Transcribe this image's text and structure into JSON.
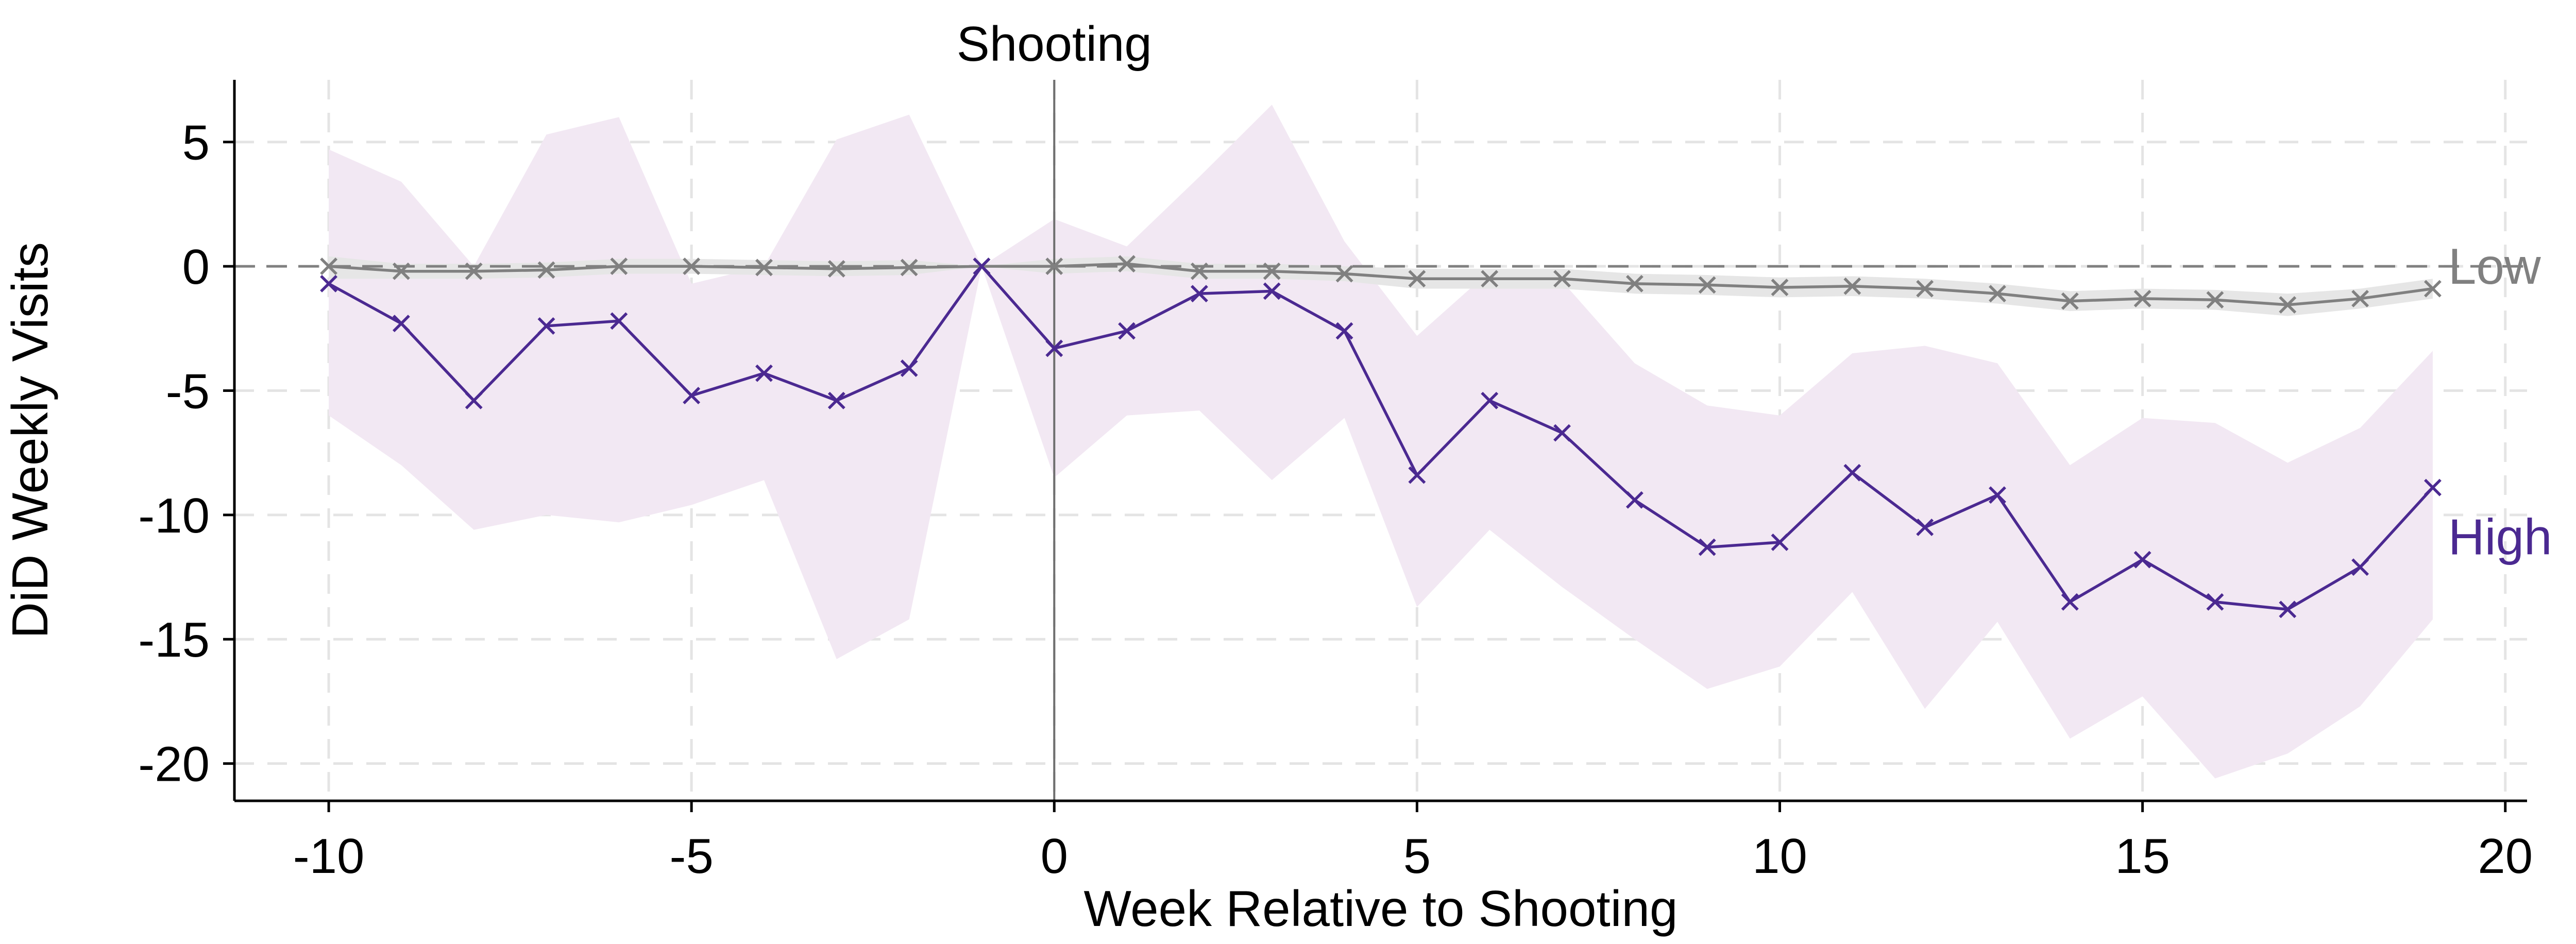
{
  "chart_data": {
    "type": "line",
    "title": "",
    "xlabel": "Week Relative to Shooting",
    "ylabel": "DiD Weekly Visits",
    "xlim": [
      -11.3,
      20.3
    ],
    "ylim": [
      -21.5,
      7.5
    ],
    "xticks": [
      -10,
      -5,
      0,
      5,
      10,
      15,
      20
    ],
    "xtick_labels": [
      "-10",
      "-5",
      "0",
      "5",
      "10",
      "15",
      "20"
    ],
    "yticks": [
      5,
      0,
      -5,
      -10,
      -15,
      -20
    ],
    "ytick_labels": [
      "5",
      "0",
      "-5",
      "-10",
      "-15",
      "-20"
    ],
    "grid": true,
    "reference_lines": {
      "horizontal_dashed_y": 0,
      "vertical_solid_x": 0
    },
    "annotations": [
      {
        "text": "Shooting",
        "x": 0,
        "position": "above-plot"
      }
    ],
    "x": [
      -10,
      -9,
      -8,
      -7,
      -6,
      -5,
      -4,
      -3,
      -2,
      -1,
      0,
      1,
      2,
      3,
      4,
      5,
      6,
      7,
      8,
      9,
      10,
      11,
      12,
      13,
      14,
      15,
      16,
      17,
      18,
      19
    ],
    "series": [
      {
        "name": "Low",
        "color": "#808080",
        "band_color": "#e6e6e6",
        "marker": "x",
        "values": [
          0.0,
          -0.2,
          -0.2,
          -0.15,
          0.0,
          0.0,
          -0.05,
          -0.1,
          -0.05,
          0.0,
          0.0,
          0.1,
          -0.2,
          -0.2,
          -0.3,
          -0.5,
          -0.5,
          -0.5,
          -0.7,
          -0.75,
          -0.85,
          -0.8,
          -0.9,
          -1.1,
          -1.4,
          -1.3,
          -1.35,
          -1.55,
          -1.3,
          -0.9
        ],
        "lower": [
          -0.5,
          -0.5,
          -0.5,
          -0.45,
          -0.3,
          -0.3,
          -0.35,
          -0.4,
          -0.35,
          0.0,
          -0.3,
          -0.2,
          -0.5,
          -0.5,
          -0.6,
          -0.9,
          -0.9,
          -0.9,
          -1.1,
          -1.15,
          -1.25,
          -1.2,
          -1.3,
          -1.5,
          -1.8,
          -1.7,
          -1.75,
          -2.0,
          -1.7,
          -1.3
        ],
        "upper": [
          0.4,
          0.1,
          0.1,
          0.15,
          0.3,
          0.3,
          0.25,
          0.2,
          0.25,
          0.0,
          0.3,
          0.4,
          0.1,
          0.1,
          0.0,
          -0.1,
          -0.1,
          -0.1,
          -0.3,
          -0.35,
          -0.45,
          -0.4,
          -0.5,
          -0.7,
          -1.0,
          -0.9,
          -0.95,
          -1.1,
          -0.9,
          -0.5
        ]
      },
      {
        "name": "High",
        "color": "#4b2991",
        "band_color": "#f2e8f3",
        "marker": "x",
        "values": [
          -0.7,
          -2.3,
          -5.4,
          -2.4,
          -2.2,
          -5.2,
          -4.3,
          -5.4,
          -4.1,
          0.0,
          -3.3,
          -2.6,
          -1.1,
          -1.0,
          -2.6,
          -8.4,
          -5.4,
          -6.7,
          -9.4,
          -11.3,
          -11.1,
          -8.3,
          -10.5,
          -9.2,
          -13.5,
          -11.8,
          -13.5,
          -13.8,
          -12.1,
          -8.9
        ],
        "lower": [
          -6.0,
          -8.0,
          -10.6,
          -10.0,
          -10.3,
          -9.6,
          -8.6,
          -15.8,
          -14.2,
          0.0,
          -8.5,
          -6.0,
          -5.8,
          -8.6,
          -6.1,
          -13.7,
          -10.6,
          -12.9,
          -15.0,
          -17.0,
          -16.1,
          -13.1,
          -17.8,
          -14.3,
          -19.0,
          -17.3,
          -20.6,
          -19.6,
          -17.7,
          -14.2
        ],
        "upper": [
          4.7,
          3.4,
          0.0,
          5.3,
          6.0,
          -0.7,
          0.0,
          5.1,
          6.1,
          0.0,
          1.9,
          0.8,
          3.6,
          6.5,
          1.0,
          -2.8,
          -0.2,
          -0.6,
          -3.9,
          -5.6,
          -6.0,
          -3.5,
          -3.2,
          -3.9,
          -8.0,
          -6.1,
          -6.3,
          -7.9,
          -6.5,
          -3.4
        ]
      }
    ]
  }
}
